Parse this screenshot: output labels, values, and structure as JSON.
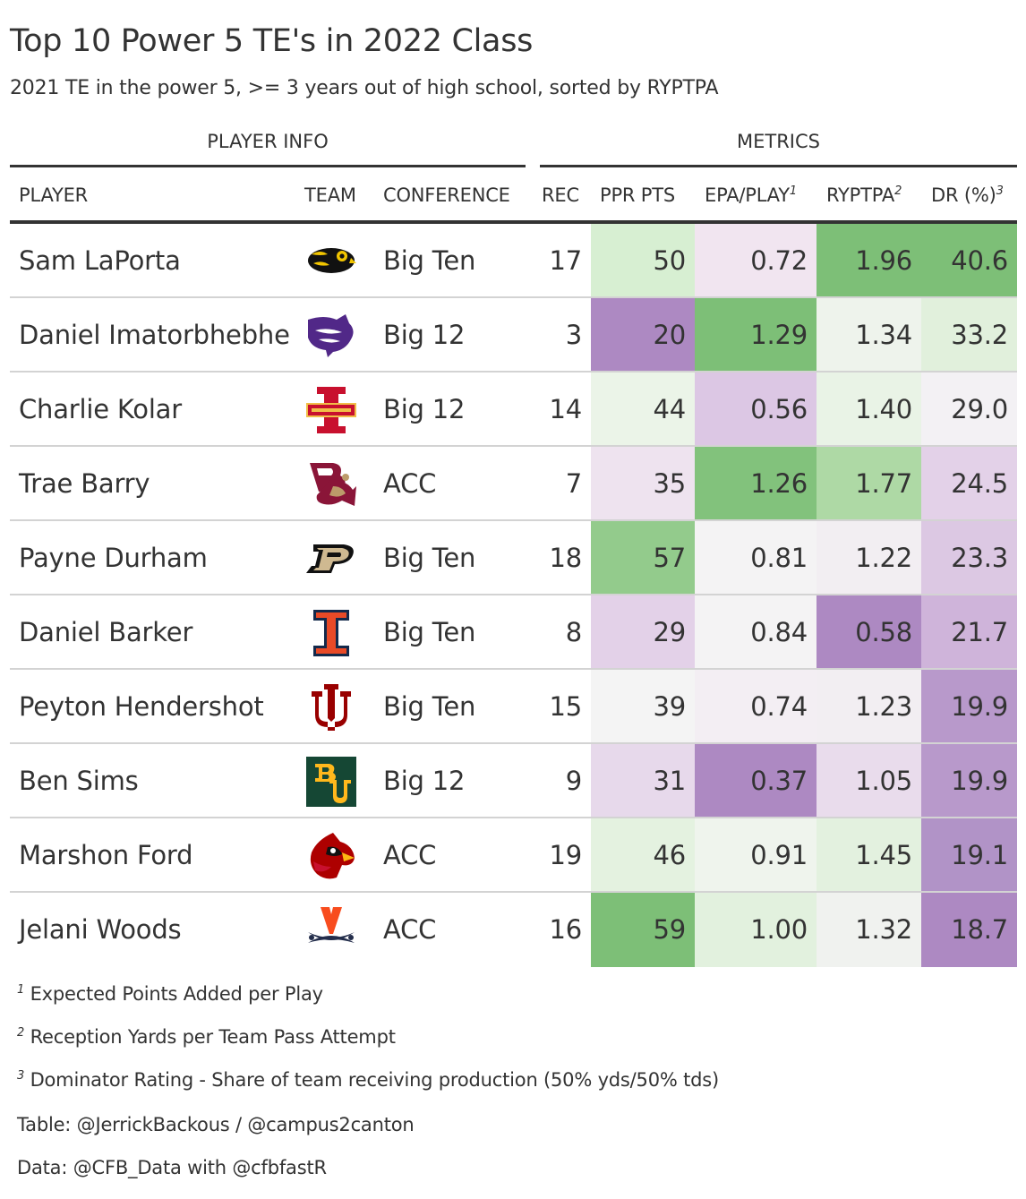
{
  "title": "Top 10 Power 5 TE's in 2022 Class",
  "subtitle": "2021 TE in the power 5, >= 3 years out of high school, sorted by RYPTPA",
  "spanners": {
    "player_info": "PLAYER INFO",
    "metrics": "METRICS"
  },
  "columns": {
    "player": "PLAYER",
    "team": "TEAM",
    "conference": "CONFERENCE",
    "rec": "REC",
    "ppr": "PPR PTS",
    "epa": "EPA/PLAY",
    "epa_note": "1",
    "ryptpa": "RYPTPA",
    "ryptpa_note": "2",
    "dr": "DR (%)",
    "dr_note": "3"
  },
  "rows": [
    {
      "player": "Sam LaPorta",
      "team_logo": "iowa-hawkeye-logo",
      "conference": "Big Ten",
      "rec": "17",
      "ppr": "50",
      "epa": "0.72",
      "ryptpa": "1.96",
      "dr": "40.6",
      "colors": {
        "ppr": "#d7efd2",
        "epa": "#f1e5f0",
        "ryptpa": "#7dbf77",
        "dr": "#7dbf77"
      }
    },
    {
      "player": "Daniel Imatorbhebhe",
      "team_logo": "kansas-state-wildcat-logo",
      "conference": "Big 12",
      "rec": "3",
      "ppr": "20",
      "epa": "1.29",
      "ryptpa": "1.34",
      "dr": "33.2",
      "colors": {
        "ppr": "#ad89c2",
        "epa": "#7dbf77",
        "ryptpa": "#eef3ec",
        "dr": "#e1f0dc"
      }
    },
    {
      "player": "Charlie Kolar",
      "team_logo": "iowa-state-logo",
      "conference": "Big 12",
      "rec": "14",
      "ppr": "44",
      "epa": "0.56",
      "ryptpa": "1.40",
      "dr": "29.0",
      "colors": {
        "ppr": "#ebf4e8",
        "epa": "#dcc7e4",
        "ryptpa": "#e9f3e6",
        "dr": "#f3f1f4"
      }
    },
    {
      "player": "Trae Barry",
      "team_logo": "boston-college-logo",
      "conference": "ACC",
      "rec": "7",
      "ppr": "35",
      "epa": "1.26",
      "ryptpa": "1.77",
      "dr": "24.5",
      "colors": {
        "ppr": "#eee3ef",
        "epa": "#82c27c",
        "ryptpa": "#aed9a5",
        "dr": "#e3d1e8"
      }
    },
    {
      "player": "Payne Durham",
      "team_logo": "purdue-logo",
      "conference": "Big Ten",
      "rec": "18",
      "ppr": "57",
      "epa": "0.81",
      "ryptpa": "1.22",
      "dr": "23.3",
      "colors": {
        "ppr": "#93cb8c",
        "epa": "#f4f3f4",
        "ryptpa": "#f2eef2",
        "dr": "#dcc8e3"
      }
    },
    {
      "player": "Daniel Barker",
      "team_logo": "illinois-logo",
      "conference": "Big Ten",
      "rec": "8",
      "ppr": "29",
      "epa": "0.84",
      "ryptpa": "0.58",
      "dr": "21.7",
      "colors": {
        "ppr": "#e3d1e8",
        "epa": "#f4f3f4",
        "ryptpa": "#ad89c2",
        "dr": "#cfb4da"
      }
    },
    {
      "player": "Peyton Hendershot",
      "team_logo": "indiana-logo",
      "conference": "Big Ten",
      "rec": "15",
      "ppr": "39",
      "epa": "0.74",
      "ryptpa": "1.23",
      "dr": "19.9",
      "colors": {
        "ppr": "#f4f4f4",
        "epa": "#f3eef3",
        "ryptpa": "#f2eef2",
        "dr": "#b899cb"
      }
    },
    {
      "player": "Ben Sims",
      "team_logo": "baylor-logo",
      "conference": "Big 12",
      "rec": "9",
      "ppr": "31",
      "epa": "0.37",
      "ryptpa": "1.05",
      "dr": "19.9",
      "colors": {
        "ppr": "#e7d9eb",
        "epa": "#ad89c2",
        "ryptpa": "#e9dcec",
        "dr": "#b899cb"
      }
    },
    {
      "player": "Marshon Ford",
      "team_logo": "louisville-cardinal-logo",
      "conference": "ACC",
      "rec": "19",
      "ppr": "46",
      "epa": "0.91",
      "ryptpa": "1.45",
      "dr": "19.1",
      "colors": {
        "ppr": "#e4f2e0",
        "epa": "#eff4ed",
        "ryptpa": "#e3f1df",
        "dr": "#b193c7"
      }
    },
    {
      "player": "Jelani Woods",
      "team_logo": "virginia-logo",
      "conference": "ACC",
      "rec": "16",
      "ppr": "59",
      "epa": "1.00",
      "ryptpa": "1.32",
      "dr": "18.7",
      "colors": {
        "ppr": "#7dbf77",
        "epa": "#e2f1de",
        "ryptpa": "#f0f2ef",
        "dr": "#ad89c2"
      }
    }
  ],
  "footnotes": [
    {
      "mark": "1",
      "text": "Expected Points Added per Play"
    },
    {
      "mark": "2",
      "text": "Reception Yards per Team Pass Attempt"
    },
    {
      "mark": "3",
      "text": "Dominator Rating - Share of team receiving production (50% yds/50% tds)"
    }
  ],
  "source_table": "Table: @JerrickBackous / @campus2canton",
  "source_data": "Data: @CFB_Data with @cfbfastR"
}
